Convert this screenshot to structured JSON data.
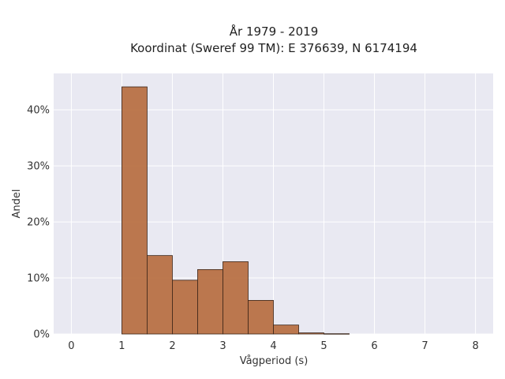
{
  "chart_data": {
    "type": "bar",
    "title_lines": [
      "År 1979 - 2019",
      "Koordinat (Sweref 99 TM): E 376639, N 6174194"
    ],
    "xlabel": "Vågperiod (s)",
    "ylabel": "Andel",
    "xlim": [
      -0.35,
      8.35
    ],
    "ylim": [
      0,
      0.465
    ],
    "x_ticks": [
      "0",
      "1",
      "2",
      "3",
      "4",
      "5",
      "6",
      "7",
      "8"
    ],
    "y_ticks": [
      "0%",
      "10%",
      "20%",
      "30%",
      "40%"
    ],
    "bin_width": 0.5,
    "bins": [
      {
        "start": 1.0,
        "value": 0.441
      },
      {
        "start": 1.5,
        "value": 0.14
      },
      {
        "start": 2.0,
        "value": 0.096
      },
      {
        "start": 2.5,
        "value": 0.115
      },
      {
        "start": 3.0,
        "value": 0.129
      },
      {
        "start": 3.5,
        "value": 0.06
      },
      {
        "start": 4.0,
        "value": 0.016
      },
      {
        "start": 4.5,
        "value": 0.002
      },
      {
        "start": 5.0,
        "value": 0.0005
      }
    ],
    "grid": true,
    "bar_color": "#b87144",
    "bar_edge_color": "#3a2418",
    "plot_bg": "#e9e9f2"
  }
}
